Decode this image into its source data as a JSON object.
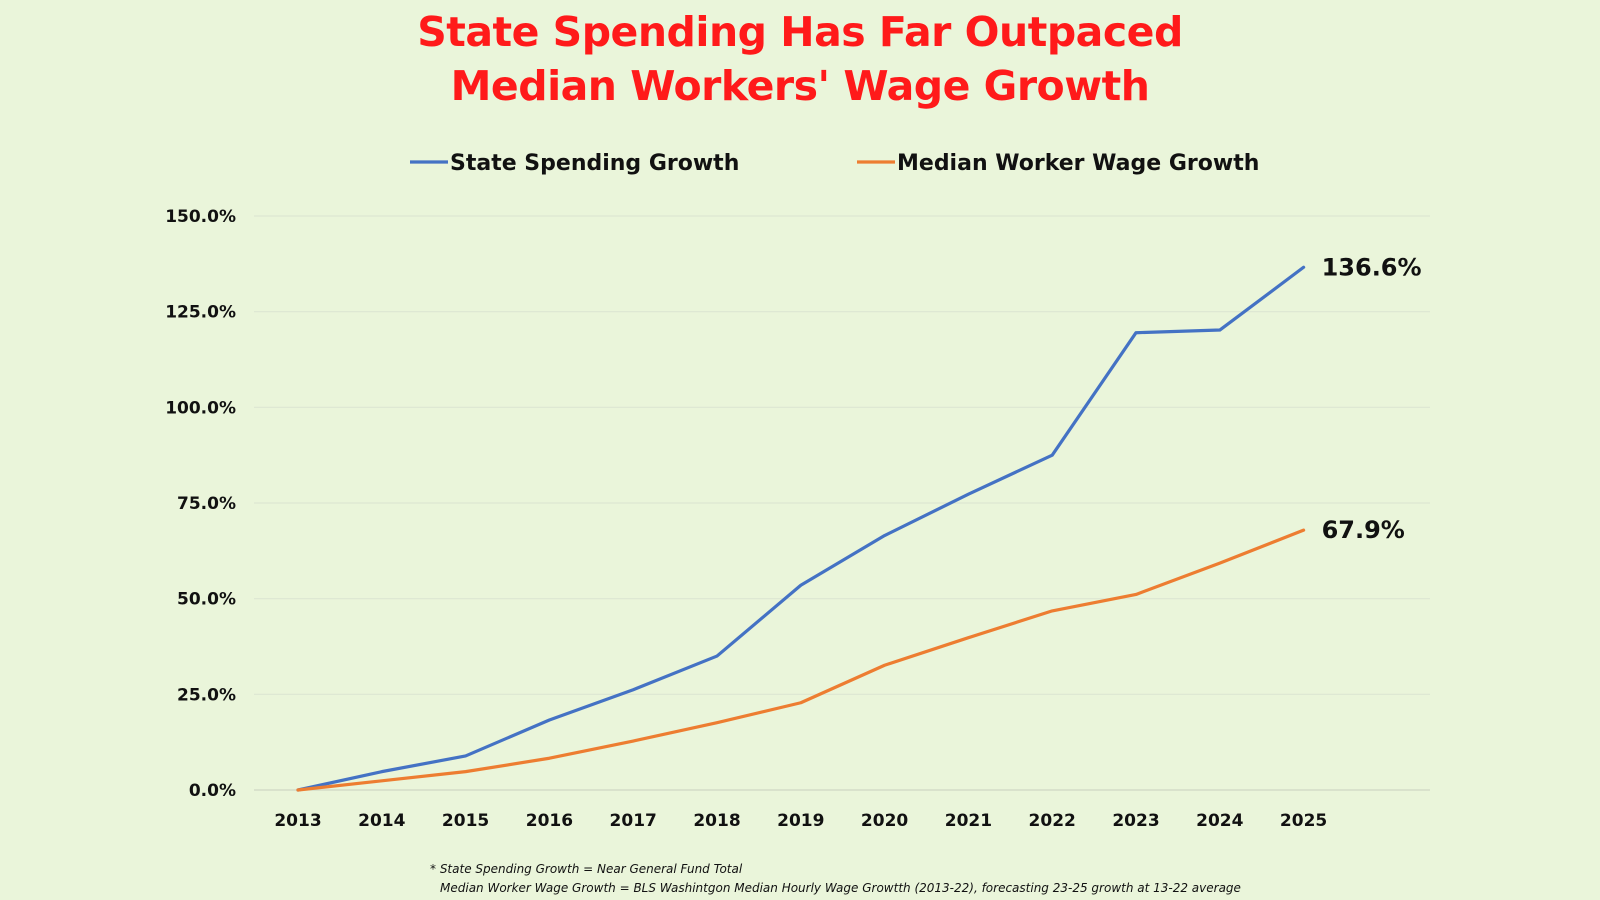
{
  "chart_data": {
    "type": "line",
    "title": "State Spending Has Far Outpaced",
    "subtitle": "Median Workers' Wage Growth",
    "categories": [
      "2013",
      "2014",
      "2015",
      "2016",
      "2017",
      "2018",
      "2019",
      "2020",
      "2021",
      "2022",
      "2023",
      "2024",
      "2025"
    ],
    "ylim": [
      0,
      150
    ],
    "yticks": [
      0,
      25,
      50,
      75,
      100,
      125,
      150
    ],
    "ytick_labels": [
      "0.0%",
      "25.0%",
      "50.0%",
      "75.0%",
      "100.0%",
      "125.0%",
      "150.0%"
    ],
    "grid": true,
    "legend_position": "top",
    "series": [
      {
        "name": "State Spending Growth",
        "color": "#4472c4",
        "values": [
          0,
          4.8,
          8.9,
          18.3,
          26.2,
          35,
          53.5,
          66.5,
          77.3,
          87.5,
          119.5,
          120.2,
          136.6
        ],
        "end_label": "136.6%"
      },
      {
        "name": "Median Worker Wage Growth",
        "color": "#ed7d31",
        "values": [
          0,
          2.4,
          4.8,
          8.3,
          12.8,
          17.6,
          22.8,
          32.6,
          39.8,
          46.8,
          51.1,
          59.3,
          67.9
        ],
        "end_label": "67.9%"
      }
    ],
    "footnotes": [
      "* State Spending Growth = Near General Fund Total",
      "Median Worker Wage Growth = BLS Washintgon Median Hourly Wage Growtth (2013-22), forecasting 23-25 growth at 13-22 average"
    ]
  }
}
